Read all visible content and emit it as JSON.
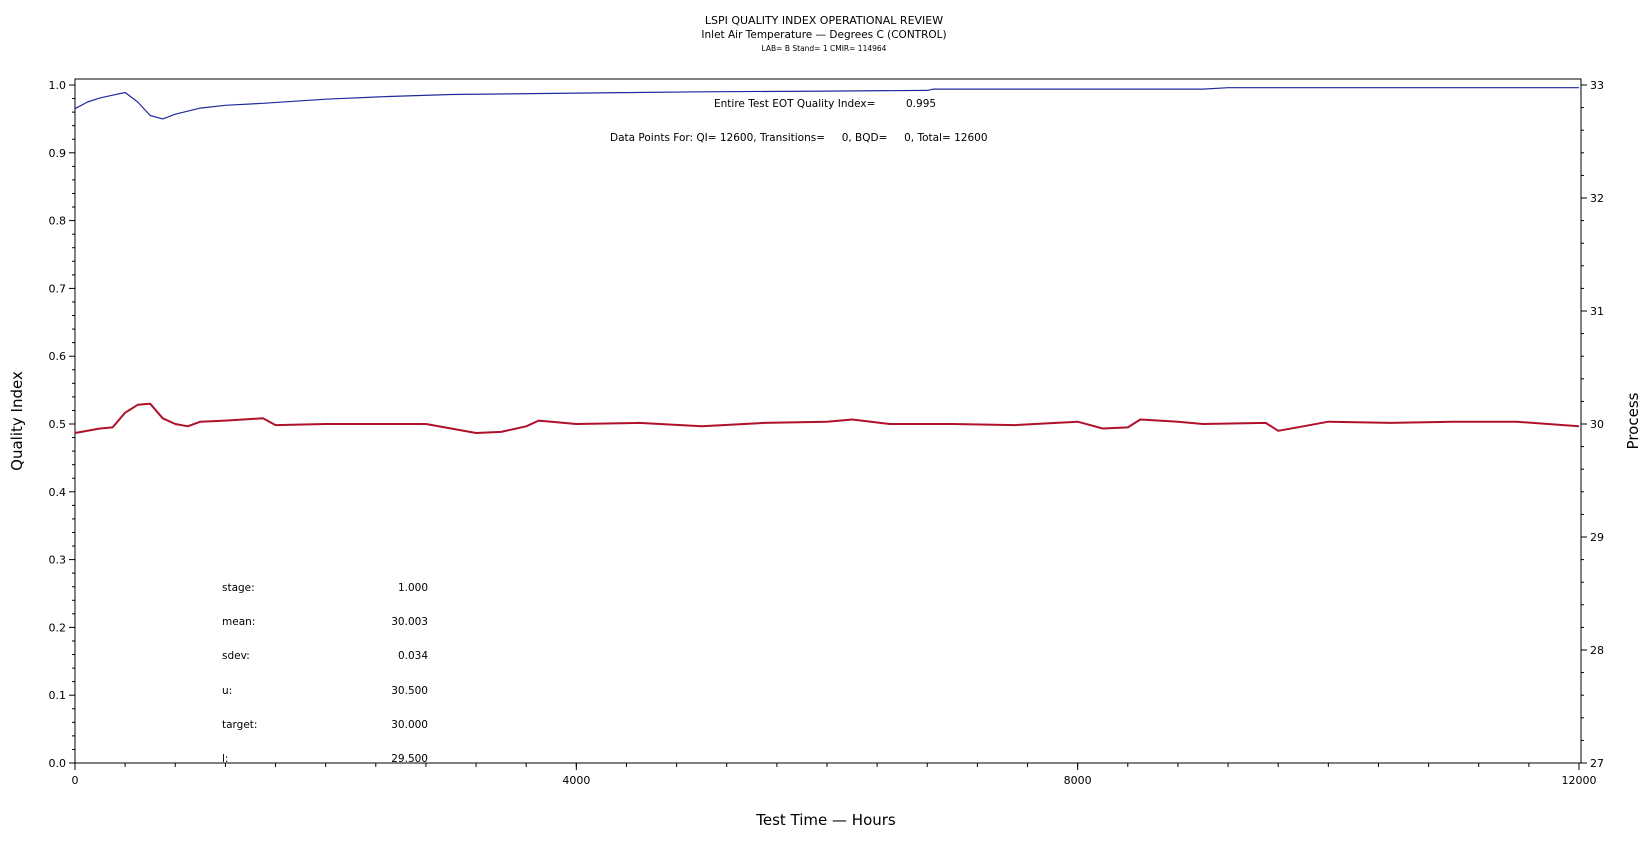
{
  "chart_data": {
    "type": "line",
    "title": "LSPI QUALITY INDEX OPERATIONAL REVIEW",
    "subtitle": "Inlet Air Temperature — Degrees C (CONTROL)",
    "subtitle2": "LAB= B Stand= 1 CMIR= 114964",
    "xlabel": "Test Time — Hours",
    "ylabel_left": "Quality Index",
    "ylabel_right": "Process",
    "xlim": [
      0,
      12000
    ],
    "ylim_left": [
      0,
      1
    ],
    "ylim_right": [
      27,
      33
    ],
    "x_ticks": [
      "0",
      "4000",
      "8000",
      "12000"
    ],
    "y_left_ticks": [
      "0.0",
      "0.1",
      "0.2",
      "0.3",
      "0.4",
      "0.5",
      "0.6",
      "0.7",
      "0.8",
      "0.9",
      "1.0"
    ],
    "y_right_ticks": [
      "27",
      "28",
      "29",
      "30",
      "31",
      "32",
      "33"
    ],
    "annotations": {
      "eot_label": "Entire Test EOT Quality Index=",
      "eot_value": "0.995",
      "data_points": "Data Points For: QI= 12600, Transitions=     0, BQD=     0, Total= 12600"
    },
    "stats": [
      {
        "label": "stage:",
        "value": "1.000"
      },
      {
        "label": "mean:",
        "value": "30.003"
      },
      {
        "label": "sdev:",
        "value": "0.034"
      },
      {
        "label": "u:",
        "value": "30.500"
      },
      {
        "label": "target:",
        "value": "30.000"
      },
      {
        "label": "l:",
        "value": "29.500"
      }
    ],
    "series": [
      {
        "axis": "left",
        "color": "#1f2a9c",
        "x": [
          0,
          100,
          200,
          300,
          400,
          500,
          600,
          700,
          800,
          1000,
          1200,
          1500,
          2000,
          2500,
          3000,
          4000,
          5000,
          6000,
          6800,
          6850,
          8000,
          9000,
          9200,
          10000,
          11000,
          12000
        ],
        "y": [
          0.965,
          0.975,
          0.981,
          0.985,
          0.989,
          0.975,
          0.955,
          0.95,
          0.957,
          0.966,
          0.97,
          0.973,
          0.979,
          0.983,
          0.986,
          0.988,
          0.99,
          0.991,
          0.992,
          0.994,
          0.994,
          0.994,
          0.996,
          0.996,
          0.996,
          0.996
        ]
      },
      {
        "axis": "right",
        "color": "#b0102a",
        "x": [
          0,
          200,
          300,
          400,
          500,
          600,
          700,
          800,
          900,
          1000,
          1200,
          1500,
          1600,
          2000,
          2500,
          2800,
          3000,
          3200,
          3400,
          3600,
          3700,
          4000,
          4500,
          5000,
          5500,
          6000,
          6200,
          6500,
          7000,
          7500,
          8000,
          8200,
          8400,
          8500,
          8800,
          9000,
          9500,
          9600,
          9800,
          10000,
          10500,
          11000,
          11500,
          12000
        ],
        "y": [
          29.92,
          29.96,
          29.97,
          30.1,
          30.17,
          30.18,
          30.05,
          30.0,
          29.98,
          30.02,
          30.03,
          30.05,
          29.99,
          30.0,
          30.0,
          30.0,
          29.96,
          29.92,
          29.93,
          29.98,
          30.03,
          30.0,
          30.01,
          29.98,
          30.01,
          30.02,
          30.04,
          30.0,
          30.0,
          29.99,
          30.02,
          29.96,
          29.97,
          30.04,
          30.02,
          30.0,
          30.01,
          29.94,
          29.98,
          30.02,
          30.01,
          30.02,
          30.02,
          29.98
        ]
      }
    ]
  }
}
